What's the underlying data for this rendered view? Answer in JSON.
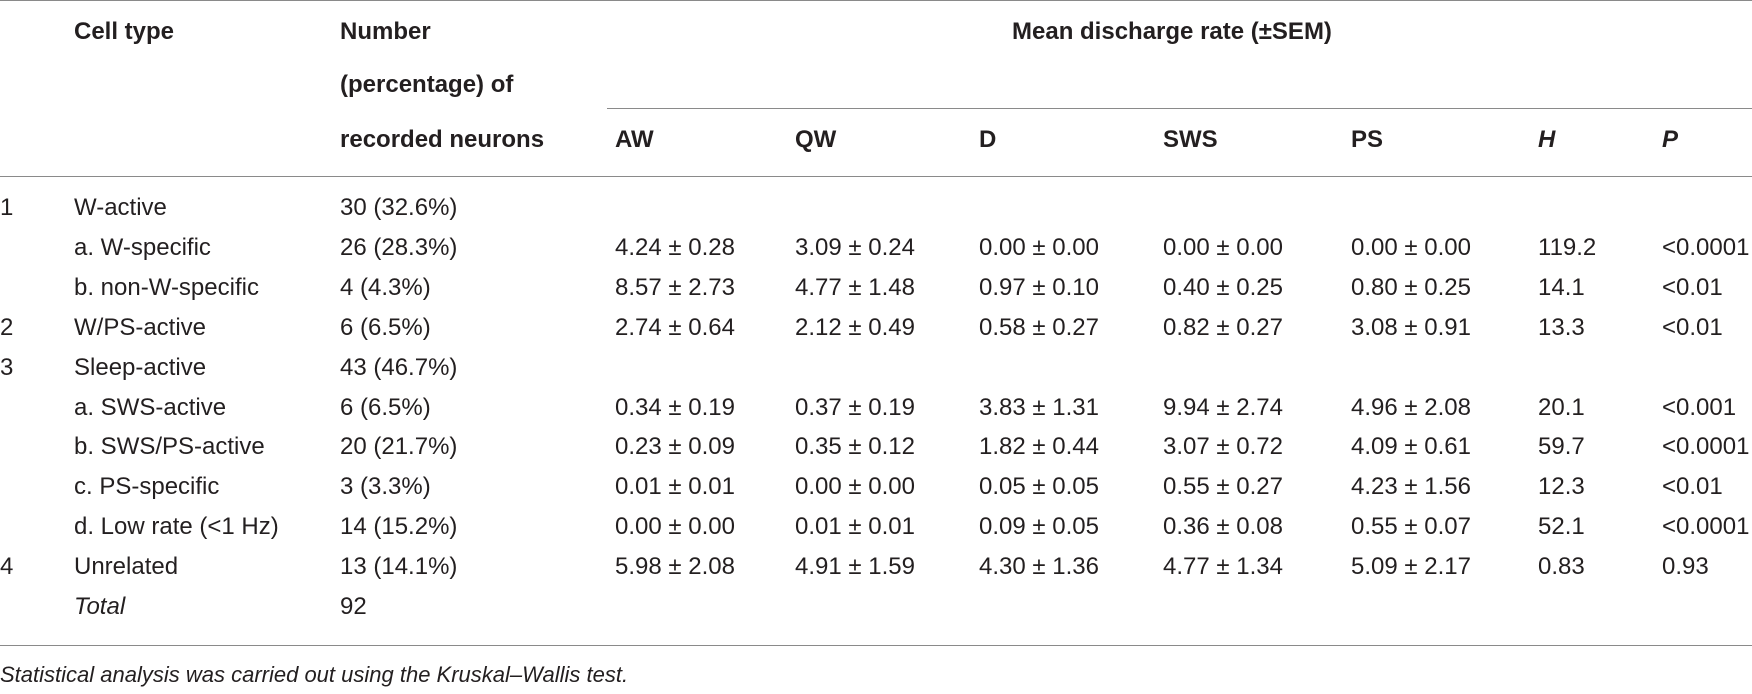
{
  "header": {
    "cell_type": "Cell type",
    "number_line1": "Number",
    "number_line2": "(percentage) of",
    "number_line3": "recorded neurons",
    "group": "Mean discharge rate (±SEM)",
    "columns": [
      "AW",
      "QW",
      "D",
      "SWS",
      "PS",
      "H",
      "P"
    ]
  },
  "rows": [
    {
      "idx": "1",
      "type": "W-active",
      "n": "30 (32.6%)",
      "vals": [
        "",
        "",
        "",
        "",
        "",
        "",
        ""
      ]
    },
    {
      "idx": "",
      "type": "a. W-specific",
      "n": "26 (28.3%)",
      "vals": [
        "4.24 ± 0.28",
        "3.09 ± 0.24",
        "0.00 ± 0.00",
        "0.00 ± 0.00",
        "0.00 ± 0.00",
        "119.2",
        "<0.0001"
      ]
    },
    {
      "idx": "",
      "type": "b. non-W-specific",
      "n": "4 (4.3%)",
      "vals": [
        "8.57 ± 2.73",
        "4.77 ± 1.48",
        "0.97 ± 0.10",
        "0.40 ± 0.25",
        "0.80 ± 0.25",
        "14.1",
        "<0.01"
      ]
    },
    {
      "idx": "2",
      "type": "W/PS-active",
      "n": "6 (6.5%)",
      "vals": [
        "2.74 ± 0.64",
        "2.12 ± 0.49",
        "0.58 ± 0.27",
        "0.82 ± 0.27",
        "3.08 ± 0.91",
        "13.3",
        "<0.01"
      ]
    },
    {
      "idx": "3",
      "type": "Sleep-active",
      "n": "43 (46.7%)",
      "vals": [
        "",
        "",
        "",
        "",
        "",
        "",
        ""
      ]
    },
    {
      "idx": "",
      "type": "a. SWS-active",
      "n": "6 (6.5%)",
      "vals": [
        "0.34 ± 0.19",
        "0.37 ± 0.19",
        "3.83 ± 1.31",
        "9.94 ± 2.74",
        "4.96 ± 2.08",
        "20.1",
        "<0.001"
      ]
    },
    {
      "idx": "",
      "type": "b. SWS/PS-active",
      "n": "20 (21.7%)",
      "vals": [
        "0.23 ± 0.09",
        "0.35 ± 0.12",
        "1.82 ± 0.44",
        "3.07 ± 0.72",
        "4.09 ± 0.61",
        "59.7",
        "<0.0001"
      ]
    },
    {
      "idx": "",
      "type": "c. PS-specific",
      "n": "3 (3.3%)",
      "vals": [
        "0.01 ± 0.01",
        "0.00 ± 0.00",
        "0.05 ± 0.05",
        "0.55 ± 0.27",
        "4.23 ± 1.56",
        "12.3",
        "<0.01"
      ]
    },
    {
      "idx": "",
      "type": "d. Low rate (<1 Hz)",
      "n": "14 (15.2%)",
      "vals": [
        "0.00 ± 0.00",
        "0.01 ± 0.01",
        "0.09 ± 0.05",
        "0.36 ± 0.08",
        "0.55 ± 0.07",
        "52.1",
        "<0.0001"
      ]
    },
    {
      "idx": "4",
      "type": "Unrelated",
      "n": "13 (14.1%)",
      "vals": [
        "5.98 ± 2.08",
        "4.91 ± 1.59",
        "4.30 ± 1.36",
        "4.77 ± 1.34",
        "5.09 ± 2.17",
        "0.83",
        "0.93"
      ]
    },
    {
      "idx": "",
      "type": "Total",
      "n": "92",
      "vals": [
        "",
        "",
        "",
        "",
        "",
        "",
        ""
      ],
      "italic_type": true
    }
  ],
  "footnote": "Statistical analysis was carried out using the Kruskal–Wallis test."
}
